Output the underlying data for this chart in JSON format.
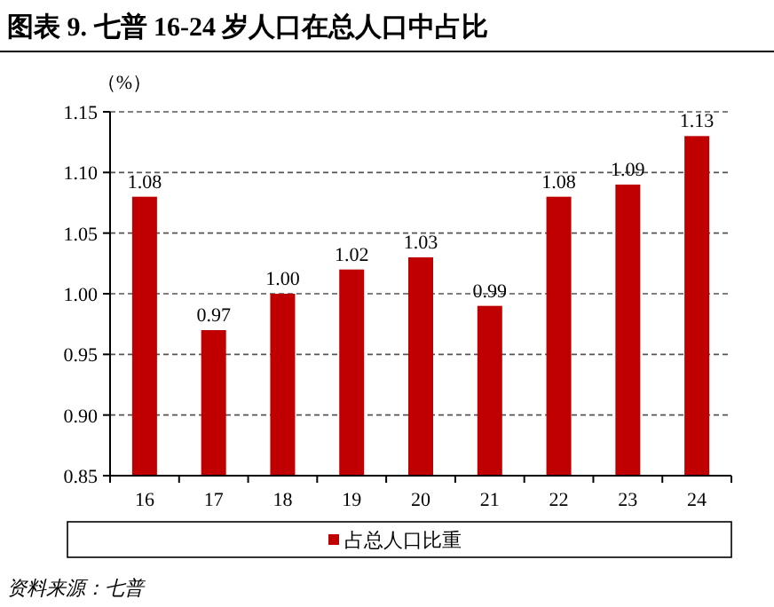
{
  "chart_data": {
    "type": "bar",
    "title": "图表 9. 七普 16-24 岁人口在总人口中占比",
    "ylabel": "（%）",
    "categories": [
      "16",
      "17",
      "18",
      "19",
      "20",
      "21",
      "22",
      "23",
      "24"
    ],
    "series": [
      {
        "name": "占总人口比重",
        "color": "#c00000",
        "values": [
          1.08,
          0.97,
          1.0,
          1.02,
          1.03,
          0.99,
          1.08,
          1.09,
          1.13
        ],
        "value_labels": [
          "1.08",
          "0.97",
          "1.00",
          "1.02",
          "1.03",
          "0.99",
          "1.08",
          "1.09",
          "1.13"
        ]
      }
    ],
    "ylim": [
      0.85,
      1.15
    ],
    "yticks": [
      {
        "value": 0.85,
        "label": "0.85"
      },
      {
        "value": 0.9,
        "label": "0.90"
      },
      {
        "value": 0.95,
        "label": "0.95"
      },
      {
        "value": 1.0,
        "label": "1.00"
      },
      {
        "value": 1.05,
        "label": "1.05"
      },
      {
        "value": 1.1,
        "label": "1.10"
      },
      {
        "value": 1.15,
        "label": "1.15"
      }
    ],
    "grid": "y",
    "legend": "bottom",
    "annotations": [
      "资料来源：七普"
    ]
  }
}
